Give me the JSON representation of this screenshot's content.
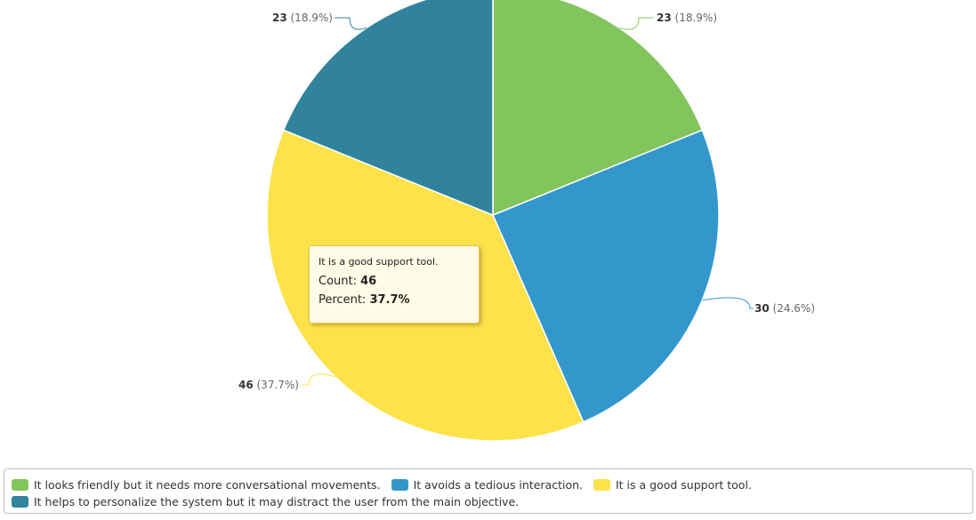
{
  "chart_data": {
    "type": "pie",
    "title": "",
    "series": [
      {
        "values": [
          23,
          30,
          46,
          23
        ],
        "percents": [
          "18.9%",
          "24.6%",
          "37.7%",
          "18.9%"
        ],
        "labels": [
          "It looks friendly but it needs more conversational movements.",
          "It avoids a tedious interaction.",
          "It is a good support tool.",
          "It helps to personalize the system but it may distract the user from the main objective."
        ],
        "colors": [
          "#82c55c",
          "#3497cc",
          "#fde249",
          "#31839d"
        ]
      }
    ],
    "data_labels": [
      {
        "value": "23",
        "percent": "(18.9%)"
      },
      {
        "value": "30",
        "percent": "(24.6%)"
      },
      {
        "value": "46",
        "percent": "(37.7%)"
      },
      {
        "value": "23",
        "percent": "(18.9%)"
      }
    ],
    "legend_position": "bottom"
  },
  "tooltip": {
    "title": "It is a good support tool.",
    "count_label": "Count:",
    "count_value": "46",
    "percent_label": "Percent:",
    "percent_value": "37.7%"
  },
  "legend": {
    "items": [
      {
        "label": "It looks friendly but it needs more conversational movements.",
        "color": "#82c55c"
      },
      {
        "label": "It avoids a tedious interaction.",
        "color": "#3497cc"
      },
      {
        "label": "It is a good support tool.",
        "color": "#fde249"
      },
      {
        "label": "It helps to personalize the system but it may distract the user from the main objective.",
        "color": "#31839d"
      }
    ]
  }
}
